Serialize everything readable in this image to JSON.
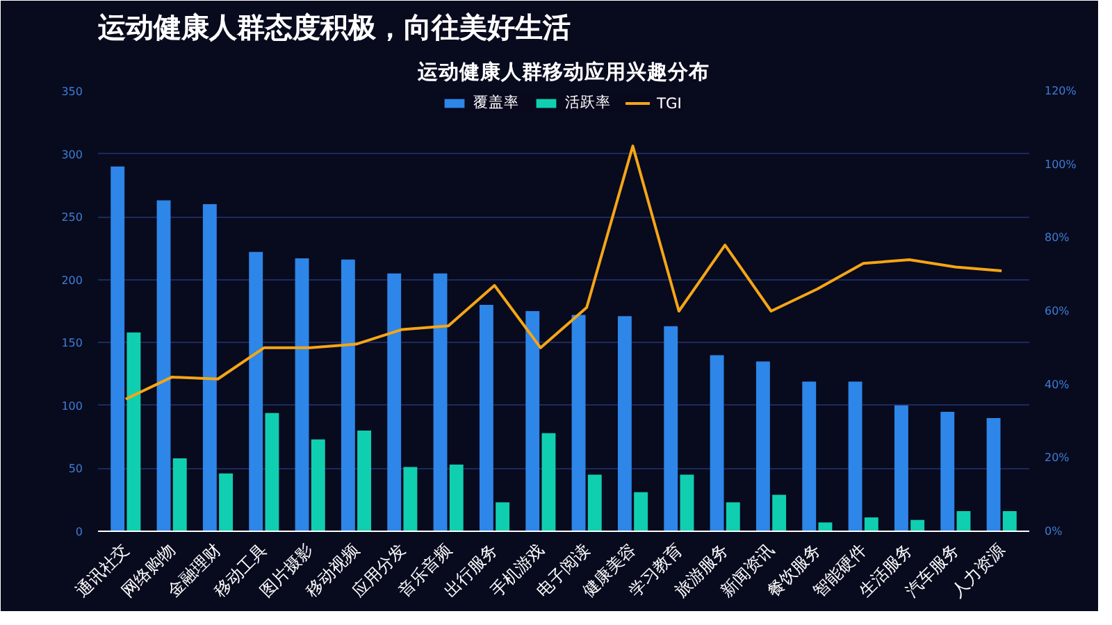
{
  "chart_data": {
    "type": "bar",
    "title": "运动健康人群态度积极，向往美好生活",
    "subtitle": "运动健康人群移动应用兴趣分布",
    "categories": [
      "通讯社交",
      "网络购物",
      "金融理财",
      "移动工具",
      "图片摄影",
      "移动视频",
      "应用分发",
      "音乐音频",
      "出行服务",
      "手机游戏",
      "电子阅读",
      "健康美容",
      "学习教育",
      "旅游服务",
      "新闻资讯",
      "餐饮服务",
      "智能硬件",
      "生活服务",
      "汽车服务",
      "人力资源"
    ],
    "series": [
      {
        "name": "覆盖率",
        "color": "#2e86e8",
        "values": [
          290,
          263,
          260,
          222,
          217,
          216,
          205,
          205,
          180,
          175,
          172,
          171,
          163,
          140,
          135,
          119,
          119,
          100,
          95,
          90
        ]
      },
      {
        "name": "活跃率",
        "color": "#10cfb0",
        "values": [
          158,
          58,
          46,
          94,
          73,
          80,
          51,
          53,
          23,
          78,
          45,
          31,
          45,
          23,
          29,
          7,
          11,
          9,
          16,
          16
        ]
      },
      {
        "name": "TGI",
        "color": "#f5a516",
        "type": "line",
        "axis": "y2",
        "values": [
          36,
          42,
          41.5,
          50,
          50,
          51,
          55,
          56,
          67,
          50,
          61,
          105,
          60,
          78,
          60,
          66,
          73,
          74,
          72,
          71
        ]
      }
    ],
    "ylim": [
      0,
      350
    ],
    "yticks": [
      0,
      50,
      100,
      150,
      200,
      250,
      300,
      350
    ],
    "y2lim": [
      0,
      120
    ],
    "y2ticks": [
      {
        "value": 0,
        "label": "0%"
      },
      {
        "value": 20,
        "label": "20%"
      },
      {
        "value": 40,
        "label": "40%"
      },
      {
        "value": 60,
        "label": "60%"
      },
      {
        "value": 80,
        "label": "80%"
      },
      {
        "value": 100,
        "label": "100%"
      },
      {
        "value": 120,
        "label": "120%"
      }
    ],
    "grid": "y",
    "legend": "top"
  }
}
